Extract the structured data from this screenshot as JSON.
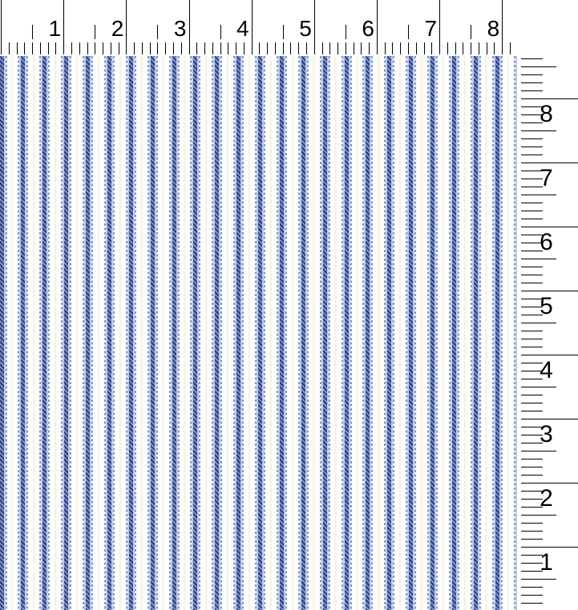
{
  "top_ruler": {
    "labels": [
      "1",
      "2",
      "3",
      "4",
      "5",
      "6",
      "7",
      "8"
    ]
  },
  "right_ruler": {
    "labels": [
      "8",
      "7",
      "6",
      "5",
      "4",
      "3",
      "2",
      "1"
    ]
  },
  "fabric": {
    "pattern": "blue-ticking-stripe"
  },
  "colors": {
    "tick": "#000000",
    "label": "#000000",
    "fabric_navy": "#2e3f7d",
    "fabric_twill_light": "#7e91c6",
    "fabric_light_blue": "#bdc9e8",
    "fabric_dash_blue": "#8099cf",
    "fabric_cream": "#f5f1e4",
    "fabric_background": "#fdfdfb",
    "page_background": "#ffffff"
  }
}
